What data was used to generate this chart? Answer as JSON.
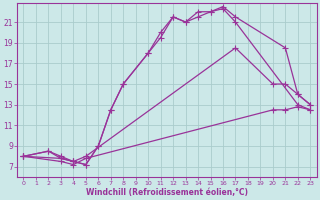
{
  "background_color": "#cce8e8",
  "grid_color": "#aacccc",
  "line_color": "#993399",
  "marker": "+",
  "xlabel": "Windchill (Refroidissement éolien,°C)",
  "yticks": [
    7,
    9,
    11,
    13,
    15,
    17,
    19,
    21
  ],
  "xticks": [
    0,
    1,
    2,
    3,
    4,
    5,
    6,
    7,
    8,
    9,
    10,
    11,
    12,
    13,
    14,
    15,
    16,
    17,
    18,
    19,
    20,
    21,
    22,
    23
  ],
  "xlim": [
    -0.5,
    23.5
  ],
  "ylim": [
    6.0,
    22.8
  ],
  "curves": [
    {
      "x": [
        0,
        2,
        3,
        4,
        5,
        6,
        7,
        8,
        10,
        11,
        12,
        13,
        14,
        15,
        16,
        17,
        21,
        22,
        23
      ],
      "y": [
        8.0,
        8.5,
        8.0,
        7.5,
        7.2,
        9.0,
        12.5,
        15.0,
        18.0,
        20.0,
        21.5,
        21.0,
        21.5,
        22.0,
        22.5,
        21.5,
        18.5,
        14.0,
        13.0
      ]
    },
    {
      "x": [
        0,
        2,
        3,
        4,
        5,
        6,
        7,
        8,
        10,
        11,
        12,
        13,
        14,
        15,
        16,
        17,
        22,
        23
      ],
      "y": [
        8.0,
        8.5,
        7.8,
        7.5,
        7.2,
        9.0,
        12.5,
        15.0,
        18.0,
        19.5,
        21.5,
        21.0,
        22.0,
        22.0,
        22.3,
        21.0,
        13.0,
        12.5
      ]
    },
    {
      "x": [
        0,
        3,
        4,
        5,
        17,
        20,
        21,
        22,
        23
      ],
      "y": [
        8.0,
        7.8,
        7.5,
        8.0,
        18.5,
        15.0,
        15.0,
        14.0,
        13.0
      ]
    },
    {
      "x": [
        0,
        3,
        4,
        5,
        20,
        21,
        22,
        23
      ],
      "y": [
        8.0,
        7.5,
        7.2,
        7.8,
        12.5,
        12.5,
        12.8,
        12.5
      ]
    }
  ]
}
